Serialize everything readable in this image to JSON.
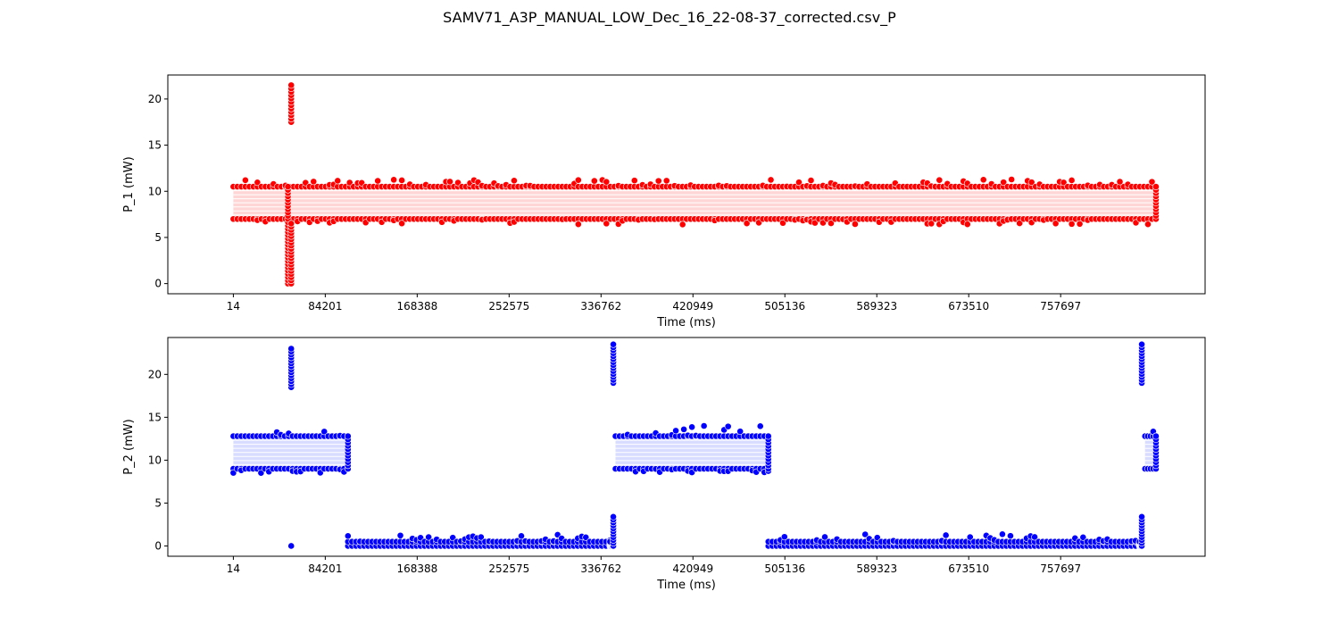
{
  "figure": {
    "title": "SAMV71_A3P_MANUAL_LOW_Dec_16_22-08-37_corrected.csv_P"
  },
  "chart_data": [
    {
      "type": "scatter",
      "xlabel": "Time (ms)",
      "ylabel": "P_1 (mW)",
      "xlim": [
        -60000,
        890000
      ],
      "ylim": [
        -1.1,
        22.6
      ],
      "x_ticks": [
        14,
        84201,
        168388,
        252575,
        336762,
        420949,
        505136,
        589323,
        673510,
        757697
      ],
      "x_tick_labels": [
        "14",
        "84201",
        "168388",
        "252575",
        "336762",
        "420949",
        "505136",
        "589323",
        "673510",
        "757697"
      ],
      "y_ticks": [
        0,
        5,
        10,
        15,
        20
      ],
      "y_tick_labels": [
        "0",
        "5",
        "10",
        "15",
        "20"
      ],
      "grid": false,
      "marker_color": "#ff0000",
      "series": [
        {
          "points_summary": "dense band",
          "segments": [
            {
              "x_start": 14,
              "x_end": 845000,
              "y_low": 7.0,
              "y_high": 10.5,
              "outlier_low": 6.4,
              "outlier_high": 11.3
            }
          ],
          "spikes": [
            {
              "x": 50000,
              "y_min": 0.0,
              "y_max": 10.5
            },
            {
              "x": 53000,
              "y_min": 17.5,
              "y_max": 21.5
            },
            {
              "x": 53000,
              "y_min": 0.0,
              "y_max": 6.5
            }
          ],
          "x_end": 845000
        }
      ]
    },
    {
      "type": "scatter",
      "xlabel": "Time (ms)",
      "ylabel": "P_2 (mW)",
      "xlim": [
        -60000,
        890000
      ],
      "ylim": [
        -1.2,
        24.3
      ],
      "x_ticks": [
        14,
        84201,
        168388,
        252575,
        336762,
        420949,
        505136,
        589323,
        673510,
        757697
      ],
      "x_tick_labels": [
        "14",
        "84201",
        "168388",
        "252575",
        "336762",
        "420949",
        "505136",
        "589323",
        "673510",
        "757697"
      ],
      "y_ticks": [
        0,
        5,
        10,
        15,
        20
      ],
      "y_tick_labels": [
        "0",
        "5",
        "10",
        "15",
        "20"
      ],
      "grid": false,
      "marker_color": "#0000ff",
      "series": [
        {
          "segments": [
            {
              "x_start": 14,
              "x_end": 105000,
              "y_low": 9.0,
              "y_high": 12.8,
              "outlier_low": 8.5,
              "outlier_high": 13.4
            },
            {
              "x_start": 105000,
              "y_low": 0.0,
              "y_high": 0.5,
              "x_end": 345000,
              "outlier_high": 1.4
            },
            {
              "x_start": 350000,
              "x_end": 490000,
              "y_low": 9.0,
              "y_high": 12.8,
              "outlier_low": 8.5,
              "outlier_high": 14.0
            },
            {
              "x_start": 490000,
              "x_end": 830000,
              "y_low": 0.0,
              "y_high": 0.5,
              "outlier_high": 1.4
            },
            {
              "x_start": 835000,
              "x_end": 845000,
              "y_low": 9.0,
              "y_high": 12.8,
              "outlier_high": 15.0
            }
          ],
          "spikes": [
            {
              "x": 53000,
              "y_min": 18.5,
              "y_max": 23.0
            },
            {
              "x": 53000,
              "y_min": 0.0,
              "y_max": 0.0
            },
            {
              "x": 348000,
              "y_min": 19.0,
              "y_max": 23.5
            },
            {
              "x": 348000,
              "y_min": 0.0,
              "y_max": 3.4
            },
            {
              "x": 832000,
              "y_min": 19.0,
              "y_max": 23.5
            },
            {
              "x": 832000,
              "y_min": 0.0,
              "y_max": 3.4
            }
          ]
        }
      ]
    }
  ]
}
